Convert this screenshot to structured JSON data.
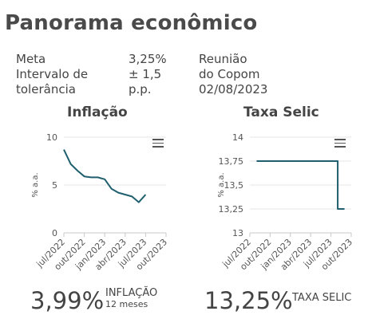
{
  "page": {
    "title": "Panorama econômico"
  },
  "meta": {
    "meta_label": "Meta",
    "meta_value": "3,25%",
    "interval_label_1": "Intervalo de",
    "interval_label_2": "tolerância",
    "interval_value_1": "± 1,5",
    "interval_value_2": "p.p.",
    "meeting_1": "Reunião",
    "meeting_2": "do Copom",
    "meeting_3": "02/08/2023"
  },
  "inflation": {
    "title": "Inflação",
    "value": "3,99%",
    "label": "INFLAÇÃO",
    "sublabel": "12 meses"
  },
  "selic": {
    "title": "Taxa Selic",
    "value": "13,25%",
    "label": "TAXA SELIC"
  },
  "colors": {
    "line": "#1f5f6e",
    "grid": "#e6e6e6",
    "axis": "#c8c8c8"
  },
  "chart_data": [
    {
      "type": "line",
      "title": "Inflação",
      "ylabel": "% a.a.",
      "ylim": [
        0,
        10
      ],
      "yticks": [
        "0",
        "5",
        "10"
      ],
      "xticks": [
        "jul/2022",
        "out/2022",
        "jan/2023",
        "abr/2023",
        "jul/2023",
        "out/2023"
      ],
      "x": [
        "2022-07",
        "2022-08",
        "2022-09",
        "2022-10",
        "2022-11",
        "2022-12",
        "2023-01",
        "2023-02",
        "2023-03",
        "2023-04",
        "2023-05",
        "2023-06",
        "2023-07"
      ],
      "series": [
        {
          "values": [
            8.7,
            7.2,
            6.5,
            5.9,
            5.8,
            5.8,
            5.6,
            4.6,
            4.2,
            4.0,
            3.8,
            3.2,
            4.0
          ]
        }
      ],
      "grid": true
    },
    {
      "type": "line",
      "title": "Taxa Selic",
      "ylabel": "% a.a.",
      "ylim": [
        13,
        14
      ],
      "yticks": [
        "13",
        "13,25",
        "13,5",
        "13,75",
        "14"
      ],
      "xticks": [
        "jul/2022",
        "out/2022",
        "jan/2023",
        "abr/2023",
        "jul/2023",
        "out/2023"
      ],
      "x": [
        "2022-08",
        "2022-09",
        "2022-10",
        "2022-11",
        "2022-12",
        "2023-01",
        "2023-02",
        "2023-03",
        "2023-04",
        "2023-05",
        "2023-06",
        "2023-07",
        "2023-08",
        "2023-09"
      ],
      "series": [
        {
          "values": [
            13.75,
            13.75,
            13.75,
            13.75,
            13.75,
            13.75,
            13.75,
            13.75,
            13.75,
            13.75,
            13.75,
            13.75,
            13.25,
            13.25
          ]
        }
      ],
      "grid": true
    }
  ]
}
